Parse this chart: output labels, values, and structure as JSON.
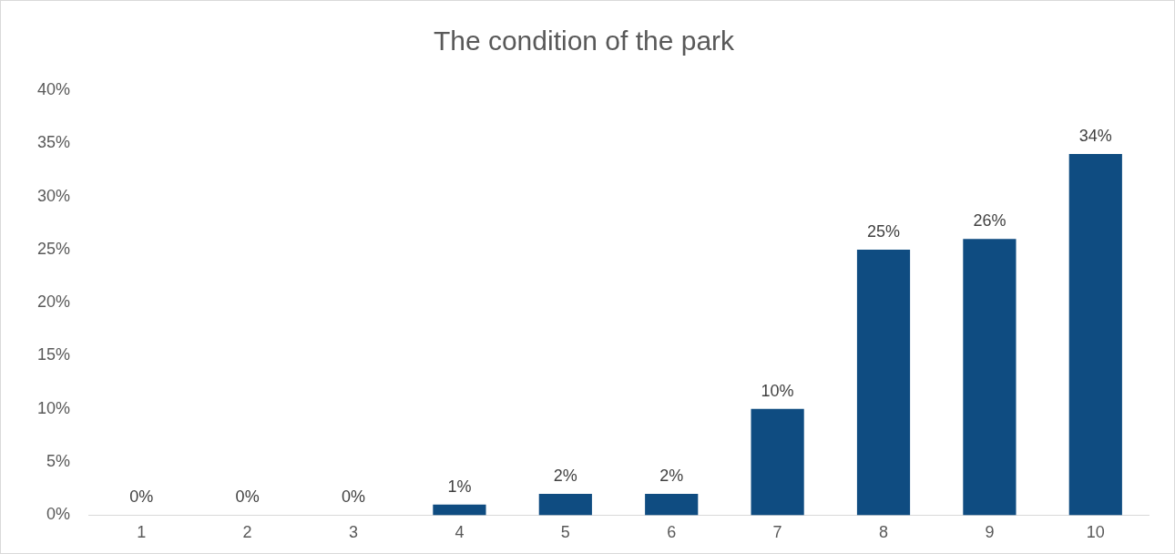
{
  "chart_data": {
    "type": "bar",
    "title": "The condition of the park",
    "categories": [
      "1",
      "2",
      "3",
      "4",
      "5",
      "6",
      "7",
      "8",
      "9",
      "10"
    ],
    "values": [
      0,
      0,
      0,
      1,
      2,
      2,
      10,
      25,
      26,
      34
    ],
    "value_labels": [
      "0%",
      "0%",
      "0%",
      "1%",
      "2%",
      "2%",
      "10%",
      "25%",
      "26%",
      "34%"
    ],
    "color": "#0f4c81",
    "ylim": [
      0,
      40
    ],
    "yticks": [
      {
        "value": 0,
        "label": "0%"
      },
      {
        "value": 5,
        "label": "5%"
      },
      {
        "value": 10,
        "label": "10%"
      },
      {
        "value": 15,
        "label": "15%"
      },
      {
        "value": 20,
        "label": "20%"
      },
      {
        "value": 25,
        "label": "25%"
      },
      {
        "value": 30,
        "label": "30%"
      },
      {
        "value": 35,
        "label": "35%"
      },
      {
        "value": 40,
        "label": "40%"
      }
    ],
    "grid": false,
    "legend": false
  }
}
